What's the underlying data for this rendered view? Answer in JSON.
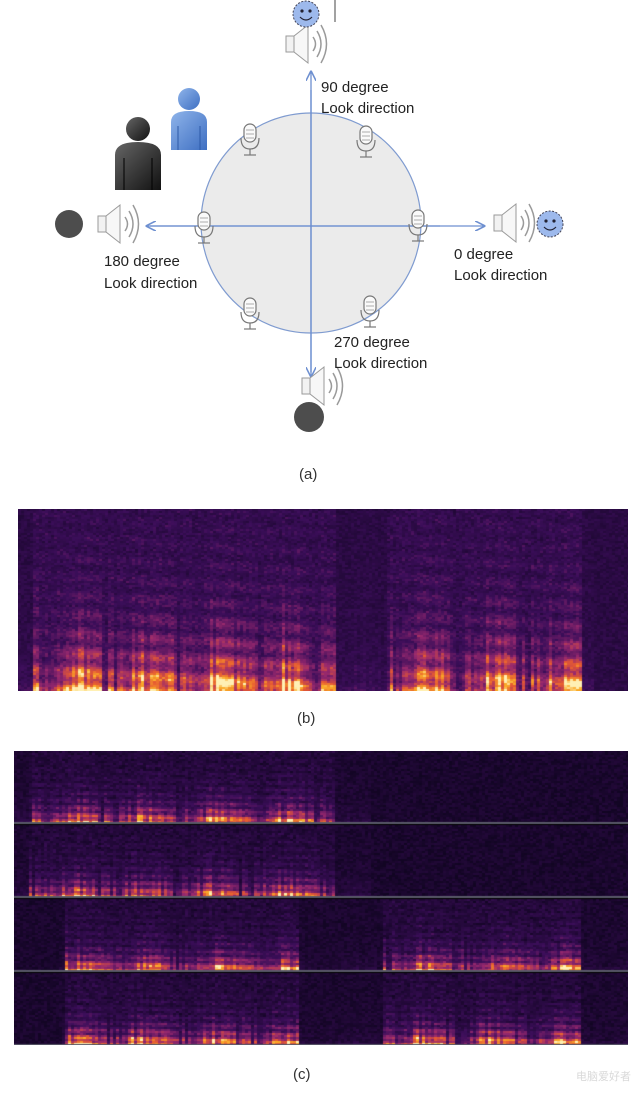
{
  "panel_a": {
    "label_90": [
      "90 degree",
      "Look direction"
    ],
    "label_0": [
      "0 degree",
      "Look direction"
    ],
    "label_180": [
      "180 degree",
      "Look direction"
    ],
    "label_270": [
      "270 degree",
      "Look direction"
    ],
    "caption": "(a)"
  },
  "panel_b": {
    "caption": "(b)"
  },
  "panel_c": {
    "caption": "(c)"
  },
  "watermark": "电脑爱好者"
}
